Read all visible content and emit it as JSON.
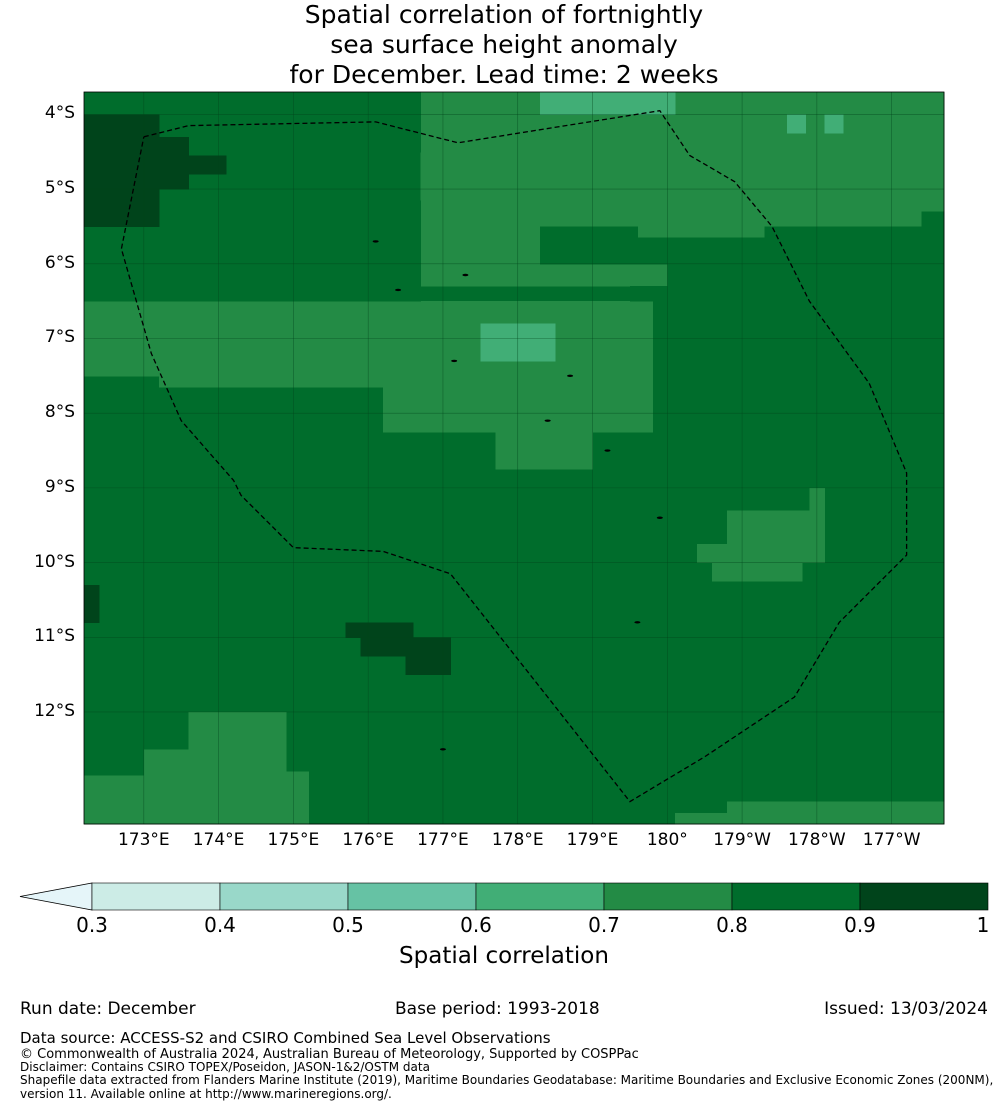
{
  "title": {
    "line1": "Spatial correlation of fortnightly",
    "line2": "sea surface height anomaly",
    "line3": "for December. Lead time: 2 weeks"
  },
  "map": {
    "lat_ticks": [
      "4°S",
      "5°S",
      "6°S",
      "7°S",
      "8°S",
      "9°S",
      "10°S",
      "11°S",
      "12°S"
    ],
    "lon_ticks": [
      "173°E",
      "174°E",
      "175°E",
      "176°E",
      "177°E",
      "178°E",
      "179°E",
      "180°",
      "179°W",
      "178°W",
      "177°W"
    ],
    "lon_range": [
      172.2,
      183.7
    ],
    "lat_range": [
      -13.5,
      -3.7
    ],
    "bands": {
      "0.3-0.4": "#ccece6",
      "0.4-0.5": "#99d8c9",
      "0.5-0.6": "#66c2a4",
      "0.6-0.7": "#41ae76",
      "0.7-0.8": "#238b45",
      "0.8-0.9": "#006d2c",
      "0.9-1.0": "#00441b"
    },
    "eez_boundary_lonlat": [
      [
        173.0,
        -4.3
      ],
      [
        173.6,
        -4.15
      ],
      [
        176.1,
        -4.1
      ],
      [
        177.2,
        -4.38
      ],
      [
        179.9,
        -3.95
      ],
      [
        180.3,
        -4.55
      ],
      [
        180.9,
        -4.9
      ],
      [
        181.4,
        -5.5
      ],
      [
        181.9,
        -6.5
      ],
      [
        182.7,
        -7.6
      ],
      [
        183.2,
        -8.8
      ],
      [
        183.2,
        -9.9
      ],
      [
        182.3,
        -10.8
      ],
      [
        181.7,
        -11.8
      ],
      [
        180.5,
        -12.6
      ],
      [
        179.5,
        -13.2
      ],
      [
        178.4,
        -11.8
      ],
      [
        177.1,
        -10.15
      ],
      [
        176.2,
        -9.85
      ],
      [
        175.0,
        -9.8
      ],
      [
        174.3,
        -9.1
      ],
      [
        174.2,
        -8.9
      ],
      [
        173.5,
        -8.1
      ],
      [
        173.1,
        -7.2
      ],
      [
        172.7,
        -5.8
      ],
      [
        173.0,
        -4.3
      ]
    ]
  },
  "colorbar": {
    "ticks": [
      "0.3",
      "0.4",
      "0.5",
      "0.6",
      "0.7",
      "0.8",
      "0.9",
      "1"
    ],
    "colors": [
      "#ccece6",
      "#99d8c9",
      "#66c2a4",
      "#41ae76",
      "#238b45",
      "#006d2c",
      "#00441b"
    ],
    "extend_color": "#e5f5f9",
    "label": "Spatial correlation"
  },
  "info": {
    "run_date": "Run date: December",
    "base_period": "Base period: 1993-2018",
    "issued": "Issued: 13/03/2024"
  },
  "footer": {
    "data_source": "Data source: ACCESS-S2 and CSIRO Combined Sea Level Observations",
    "copyright": "© Commonwealth of Australia 2024, Australian Bureau of Meteorology, Supported by COSPPac",
    "disclaimer": "Disclaimer: Contains CSIRO TOPEX/Poseidon, JASON-1&2/OSTM data",
    "shapefile_line1": "Shapefile data extracted from Flanders Marine Institute (2019), Maritime Boundaries Geodatabase: Maritime Boundaries and Exclusive Economic Zones (200NM),",
    "shapefile_line2": "version 11. Available online at http://www.marineregions.org/."
  }
}
